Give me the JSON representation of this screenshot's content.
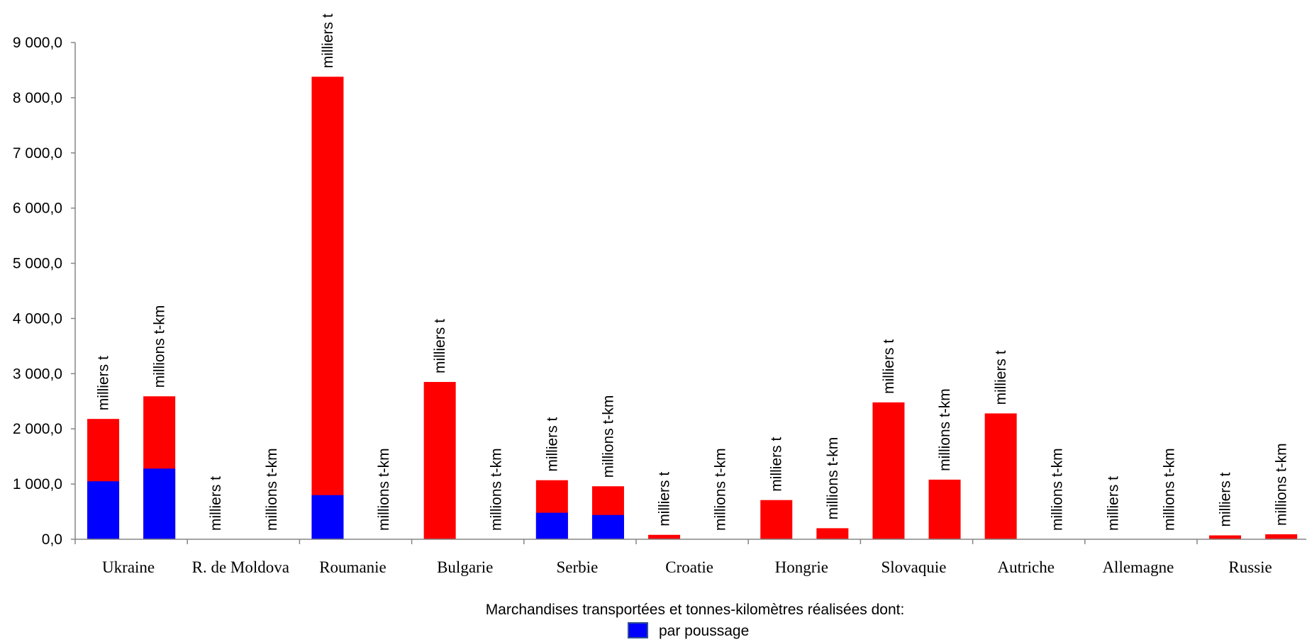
{
  "chart_data": {
    "type": "bar",
    "stacked": true,
    "title": "",
    "xlabel": "",
    "ylabel": "",
    "ylim": [
      0,
      9000
    ],
    "yticks": [
      0,
      1000,
      2000,
      3000,
      4000,
      5000,
      6000,
      7000,
      8000,
      9000
    ],
    "ytick_labels": [
      "0,0",
      "1 000,0",
      "2 000,0",
      "3 000,0",
      "4 000,0",
      "5 000,0",
      "6 000,0",
      "7 000,0",
      "8 000,0",
      "9 000,0"
    ],
    "grid": false,
    "countries": [
      "Ukraine",
      "R. de Moldova",
      "Roumanie",
      "Bulgarie",
      "Serbie",
      "Croatie",
      "Hongrie",
      "Slovaquie",
      "Autriche",
      "Allemagne",
      "Russie"
    ],
    "bars": [
      {
        "label": "milliers t",
        "total": 2180,
        "par_poussage": 1050
      },
      {
        "label": "millions t-km",
        "total": 2590,
        "par_poussage": 1280
      },
      {
        "label": "milliers t",
        "total": 0,
        "par_poussage": 0
      },
      {
        "label": "millions t-km",
        "total": 0,
        "par_poussage": 0
      },
      {
        "label": "milliers t",
        "total": 8380,
        "par_poussage": 800
      },
      {
        "label": "millions t-km",
        "total": 0,
        "par_poussage": 0
      },
      {
        "label": "milliers t",
        "total": 2850,
        "par_poussage": 0
      },
      {
        "label": "millions t-km",
        "total": 0,
        "par_poussage": 0
      },
      {
        "label": "milliers t",
        "total": 1070,
        "par_poussage": 480
      },
      {
        "label": "millions t-km",
        "total": 960,
        "par_poussage": 440
      },
      {
        "label": "milliers t",
        "total": 80,
        "par_poussage": 0
      },
      {
        "label": "millions t-km",
        "total": 0,
        "par_poussage": 0
      },
      {
        "label": "milliers t",
        "total": 710,
        "par_poussage": 0
      },
      {
        "label": "millions t-km",
        "total": 200,
        "par_poussage": 0
      },
      {
        "label": "milliers t",
        "total": 2480,
        "par_poussage": 0
      },
      {
        "label": "millions t-km",
        "total": 1080,
        "par_poussage": 0
      },
      {
        "label": "milliers t",
        "total": 2280,
        "par_poussage": 0
      },
      {
        "label": "millions t-km",
        "total": 0,
        "par_poussage": 0
      },
      {
        "label": "milliers t",
        "total": 0,
        "par_poussage": 0
      },
      {
        "label": "millions t-km",
        "total": 0,
        "par_poussage": 0
      },
      {
        "label": "milliers t",
        "total": 70,
        "par_poussage": 0
      },
      {
        "label": "millions t-km",
        "total": 90,
        "par_poussage": 0
      }
    ],
    "legend": {
      "title": "Marchandises transportées et tonnes-kilomètres réalisées dont:",
      "entries": [
        {
          "name": "par poussage",
          "color": "#0000ff"
        }
      ],
      "placement": "bottom"
    },
    "colors": {
      "total": "#ff0000",
      "par_poussage": "#0000ff",
      "axis": "#868686"
    }
  }
}
